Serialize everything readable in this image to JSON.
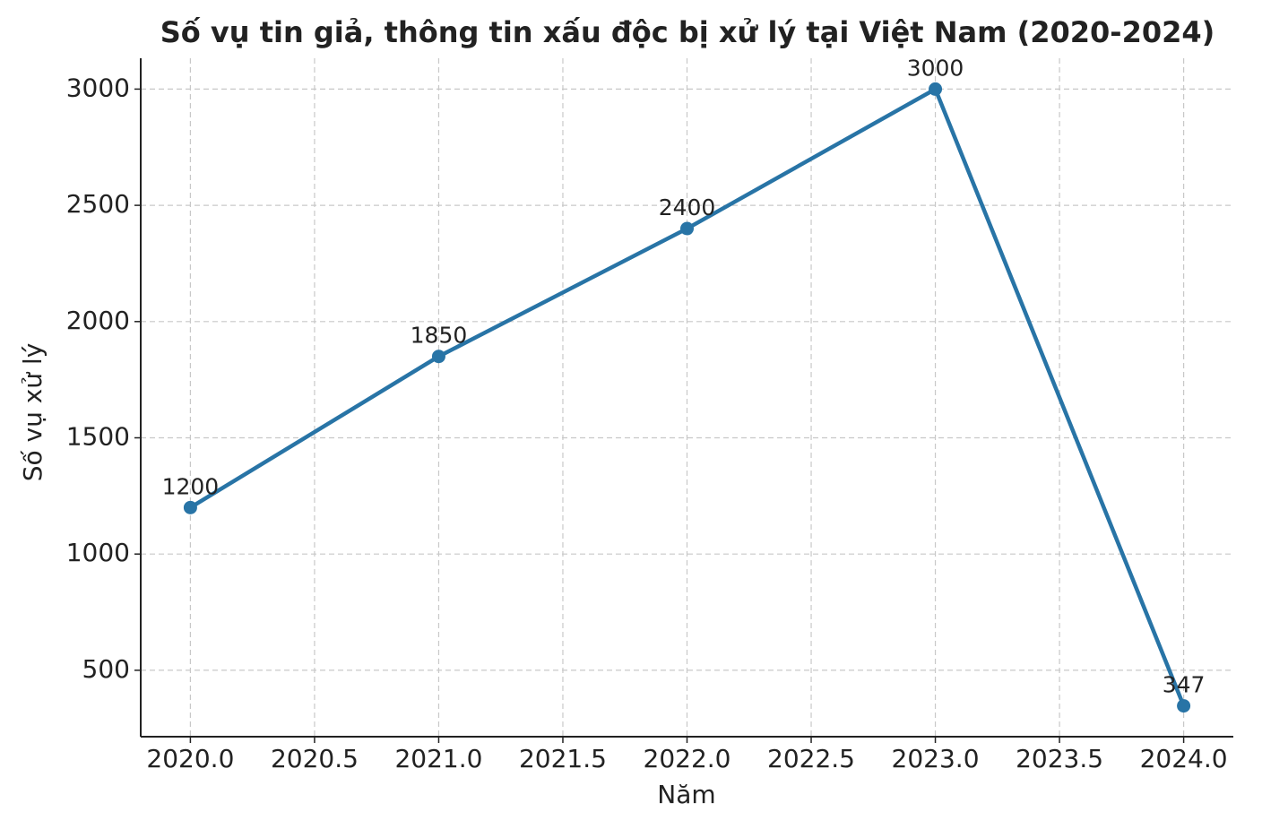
{
  "chart_data": {
    "type": "line",
    "title": "Số vụ tin giả, thông tin xấu độc bị xử lý tại Việt Nam (2020-2024)",
    "x_label": "Năm",
    "y_label": "Số vụ xử lý",
    "x": [
      2020,
      2021,
      2022,
      2023,
      2024
    ],
    "values": [
      1200,
      1850,
      2400,
      3000,
      347
    ],
    "color": "#2874a6",
    "xlim": [
      2019.8,
      2024.2
    ],
    "xticks": [
      {
        "value": 2020,
        "label": "2020.0"
      },
      2020.5,
      {
        "value": 2021,
        "label": "2021.0"
      },
      2021.5,
      {
        "value": 2022,
        "label": "2022.0"
      },
      2022.5,
      {
        "value": 2023,
        "label": "2023.0"
      },
      2023.5,
      {
        "value": 2024,
        "label": "2024.0"
      }
    ],
    "ylim": [
      214.35,
      3132.65
    ],
    "yticks": [
      500,
      1000,
      1500,
      2000,
      2500,
      3000
    ],
    "grid": true
  }
}
